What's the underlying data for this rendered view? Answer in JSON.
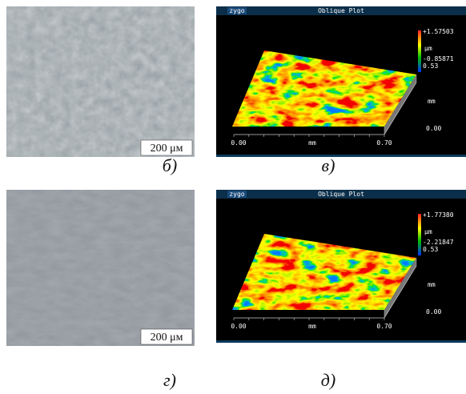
{
  "panels": [
    {
      "kind": "micrograph",
      "label": "б)",
      "scale_bar": "200 μм"
    },
    {
      "kind": "profilometer",
      "label": "в)",
      "brand": "zygo",
      "title": "Oblique Plot",
      "z_max": "+1.57503",
      "z_unit": "μm",
      "z_min": "-0.85871",
      "y_extent": "0.53",
      "y_unit": "mm",
      "y_start": "0.00",
      "x_start": "0.00",
      "x_unit": "mm",
      "x_end": "0.70"
    },
    {
      "kind": "micrograph",
      "label": "г)",
      "scale_bar": "200 μм"
    },
    {
      "kind": "profilometer",
      "label": "д)",
      "brand": "zygo",
      "title": "Oblique Plot",
      "z_max": "+1.77380",
      "z_unit": "μm",
      "z_min": "-2.21847",
      "y_extent": "0.53",
      "y_unit": "mm",
      "y_start": "0.00",
      "x_start": "0.00",
      "x_unit": "mm",
      "x_end": "0.70"
    }
  ]
}
